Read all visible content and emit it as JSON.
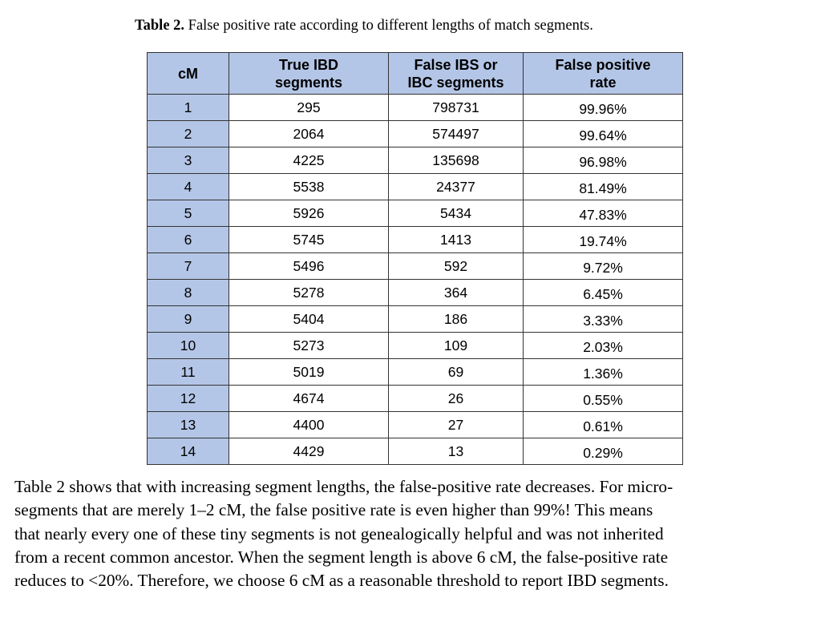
{
  "caption": {
    "label": "Table 2.",
    "text": " False positive rate according to different lengths of match segments."
  },
  "table": {
    "headers": [
      [
        "cM"
      ],
      [
        "True IBD",
        "segments"
      ],
      [
        "False IBS or",
        "IBC segments"
      ],
      [
        "False positive",
        "rate"
      ]
    ],
    "rows": [
      [
        "1",
        "295",
        "798731",
        "99.96%"
      ],
      [
        "2",
        "2064",
        "574497",
        "99.64%"
      ],
      [
        "3",
        "4225",
        "135698",
        "96.98%"
      ],
      [
        "4",
        "5538",
        "24377",
        "81.49%"
      ],
      [
        "5",
        "5926",
        "5434",
        "47.83%"
      ],
      [
        "6",
        "5745",
        "1413",
        "19.74%"
      ],
      [
        "7",
        "5496",
        "592",
        "9.72%"
      ],
      [
        "8",
        "5278",
        "364",
        "6.45%"
      ],
      [
        "9",
        "5404",
        "186",
        "3.33%"
      ],
      [
        "10",
        "5273",
        "109",
        "2.03%"
      ],
      [
        "11",
        "5019",
        "69",
        "1.36%"
      ],
      [
        "12",
        "4674",
        "26",
        "0.55%"
      ],
      [
        "13",
        "4400",
        "27",
        "0.61%"
      ],
      [
        "14",
        "4429",
        "13",
        "0.29%"
      ]
    ],
    "header_color": "#b4c6e7"
  },
  "paragraph": [
    "Table 2 shows that with increasing segment lengths, the false-positive rate decreases. For micro-",
    "segments that are merely 1–2 cM, the false positive rate is even higher than 99%! This means",
    "that nearly every one of these tiny segments is not genealogically helpful and was not inherited",
    "from a recent common ancestor. When the segment length is above 6 cM, the false-positive rate",
    "reduces to <20%. Therefore, we choose 6 cM as a reasonable threshold to report IBD segments."
  ]
}
